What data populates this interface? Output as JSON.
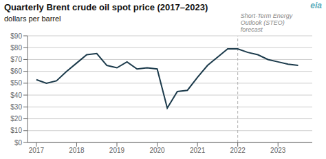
{
  "chart_data": {
    "type": "line",
    "title": "Quarterly Brent crude oil spot price (2017–2023)",
    "subtitle": "dollars per barrel",
    "x": [
      2017.0,
      2017.25,
      2017.5,
      2017.75,
      2018.0,
      2018.25,
      2018.5,
      2018.75,
      2019.0,
      2019.25,
      2019.5,
      2019.75,
      2020.0,
      2020.25,
      2020.5,
      2020.75,
      2021.0,
      2021.25,
      2021.5,
      2021.75,
      2022.0,
      2022.25,
      2022.5,
      2022.75,
      2023.0,
      2023.25,
      2023.5
    ],
    "values": [
      53,
      50,
      52,
      60,
      67,
      74,
      75,
      65,
      63,
      68,
      62,
      63,
      62,
      29,
      43,
      44,
      55,
      65,
      72,
      79,
      79,
      76,
      74,
      70,
      68,
      66,
      65
    ],
    "color": "#1b3a4b",
    "xlim": [
      2016.78,
      2023.85
    ],
    "xticks": [
      2017,
      2018,
      2019,
      2020,
      2021,
      2022,
      2023
    ],
    "ylim": [
      0,
      90
    ],
    "yticks": [
      {
        "value": 0,
        "label": "$0"
      },
      {
        "value": 10,
        "label": "$10"
      },
      {
        "value": 20,
        "label": "$20"
      },
      {
        "value": 30,
        "label": "$30"
      },
      {
        "value": 40,
        "label": "$40"
      },
      {
        "value": 50,
        "label": "$50"
      },
      {
        "value": 60,
        "label": "$60"
      },
      {
        "value": 70,
        "label": "$70"
      },
      {
        "value": 80,
        "label": "$80"
      },
      {
        "value": 90,
        "label": "$90"
      }
    ],
    "grid": true,
    "annotations": [
      {
        "text": "Short-Term Energy\nOutlook (STEO)\nforecast",
        "x": 2022.0,
        "line_style": "dashed"
      },
      {
        "text": "eia"
      }
    ]
  }
}
